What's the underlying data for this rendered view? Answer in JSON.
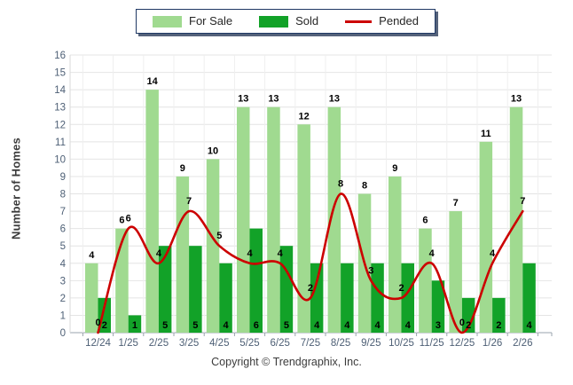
{
  "legend": {
    "items": [
      {
        "label": "For Sale",
        "color": "#A0DA90",
        "swatch": "bar"
      },
      {
        "label": "Sold",
        "color": "#12A228",
        "swatch": "bar"
      },
      {
        "label": "Pended",
        "color": "#CC0000",
        "swatch": "line"
      }
    ]
  },
  "chart_data": {
    "type": "bar",
    "subtype": "grouped-bars-with-smooth-line",
    "categories": [
      "12/24",
      "1/25",
      "2/25",
      "3/25",
      "4/25",
      "5/25",
      "6/25",
      "7/25",
      "8/25",
      "9/25",
      "10/25",
      "11/25",
      "12/25",
      "1/26",
      "2/26"
    ],
    "series": [
      {
        "name": "For Sale",
        "type": "bar",
        "color": "#A0DA90",
        "values": [
          4,
          6,
          14,
          9,
          10,
          13,
          13,
          12,
          13,
          8,
          9,
          6,
          7,
          11,
          13
        ]
      },
      {
        "name": "Sold",
        "type": "bar",
        "color": "#12A228",
        "values": [
          2,
          1,
          5,
          5,
          4,
          6,
          5,
          4,
          4,
          4,
          4,
          3,
          2,
          2,
          4
        ]
      },
      {
        "name": "Pended",
        "type": "line",
        "color": "#CC0000",
        "values": [
          0,
          6,
          4,
          7,
          5,
          4,
          4,
          2,
          8,
          3,
          2,
          4,
          0,
          4,
          7
        ]
      }
    ],
    "xlabel": "",
    "ylabel": "Number of Homes",
    "ylim": [
      0,
      16
    ],
    "ytick_step": 1,
    "grid": true,
    "legend_position": "top-center",
    "value_labels": true,
    "label_color": "#000000",
    "axis_text_color": "#4D5F75",
    "gridline_color": "#E4E4E4"
  },
  "footer": {
    "copyright": "Copyright © Trendgraphix, Inc."
  }
}
